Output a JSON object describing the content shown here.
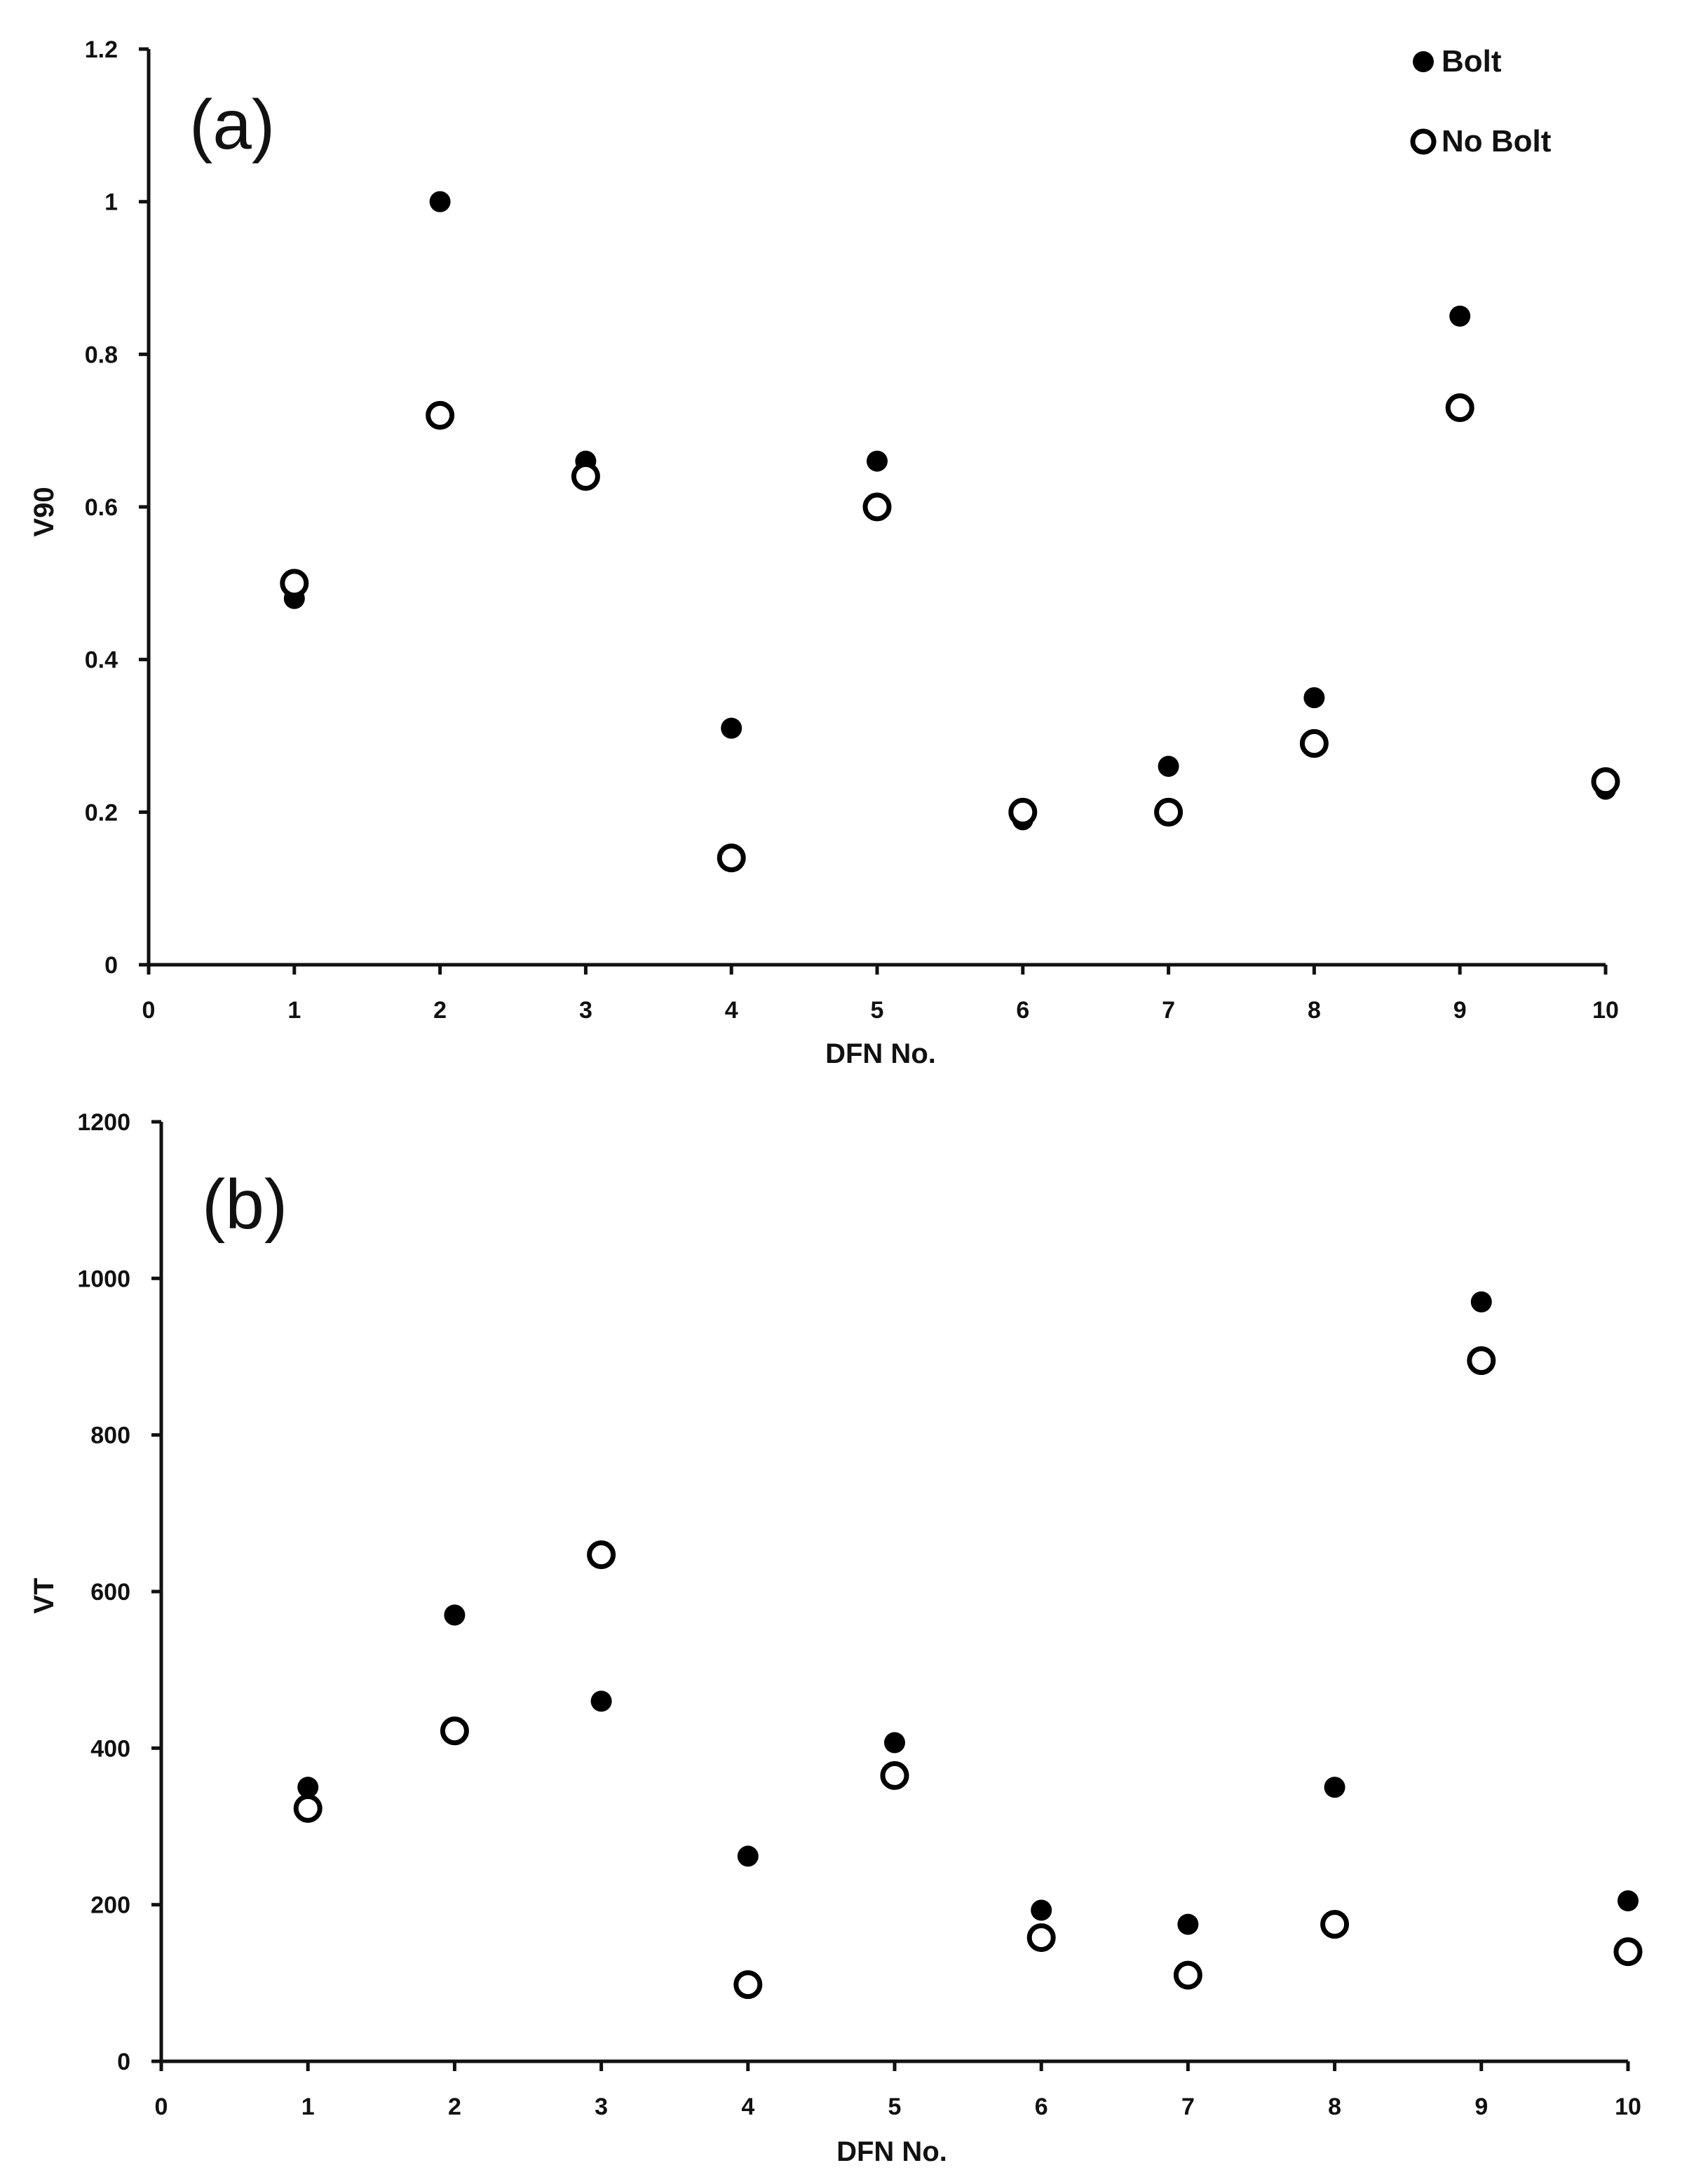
{
  "legend": {
    "bolt_label": "Bolt",
    "no_bolt_label": "No Bolt"
  },
  "colors": {
    "bolt_marker": "#000000",
    "no_bolt_marker": "#ffffff",
    "axis": "#111111"
  },
  "chart_data": [
    {
      "type": "scatter",
      "panel_label": "(a)",
      "xlabel": "DFN No.",
      "ylabel": "V90",
      "xlim": [
        0,
        10
      ],
      "ylim": [
        0,
        1.2
      ],
      "x_ticks": [
        "0",
        "1",
        "2",
        "3",
        "4",
        "5",
        "6",
        "7",
        "8",
        "9",
        "10"
      ],
      "y_ticks": [
        "0",
        "0.2",
        "0.4",
        "0.6",
        "0.8",
        "1",
        "1.2"
      ],
      "x": [
        1,
        2,
        3,
        4,
        5,
        6,
        7,
        8,
        9,
        10
      ],
      "series": [
        {
          "name": "Bolt",
          "marker": "filled-circle",
          "values": [
            0.48,
            1.0,
            0.66,
            0.31,
            0.66,
            0.19,
            0.26,
            0.35,
            0.85,
            0.23
          ]
        },
        {
          "name": "No Bolt",
          "marker": "open-circle",
          "values": [
            0.5,
            0.72,
            0.64,
            0.14,
            0.6,
            0.2,
            0.2,
            0.29,
            0.73,
            0.24
          ]
        }
      ],
      "legend_position": "top-right",
      "grid": false
    },
    {
      "type": "scatter",
      "panel_label": "(b)",
      "xlabel": "DFN No.",
      "ylabel": "VT",
      "xlim": [
        0,
        10
      ],
      "ylim": [
        0,
        1200
      ],
      "x_ticks": [
        "0",
        "1",
        "2",
        "3",
        "4",
        "5",
        "6",
        "7",
        "8",
        "9",
        "10"
      ],
      "y_ticks": [
        "0",
        "200",
        "400",
        "600",
        "800",
        "1000",
        "1200"
      ],
      "x": [
        1,
        2,
        3,
        4,
        5,
        6,
        7,
        8,
        9,
        10
      ],
      "series": [
        {
          "name": "Bolt",
          "marker": "filled-circle",
          "values": [
            350,
            570,
            460,
            262,
            407,
            193,
            175,
            350,
            970,
            205
          ]
        },
        {
          "name": "No Bolt",
          "marker": "open-circle",
          "values": [
            323,
            422,
            647,
            98,
            365,
            158,
            110,
            175,
            895,
            140
          ]
        }
      ],
      "grid": false
    }
  ]
}
